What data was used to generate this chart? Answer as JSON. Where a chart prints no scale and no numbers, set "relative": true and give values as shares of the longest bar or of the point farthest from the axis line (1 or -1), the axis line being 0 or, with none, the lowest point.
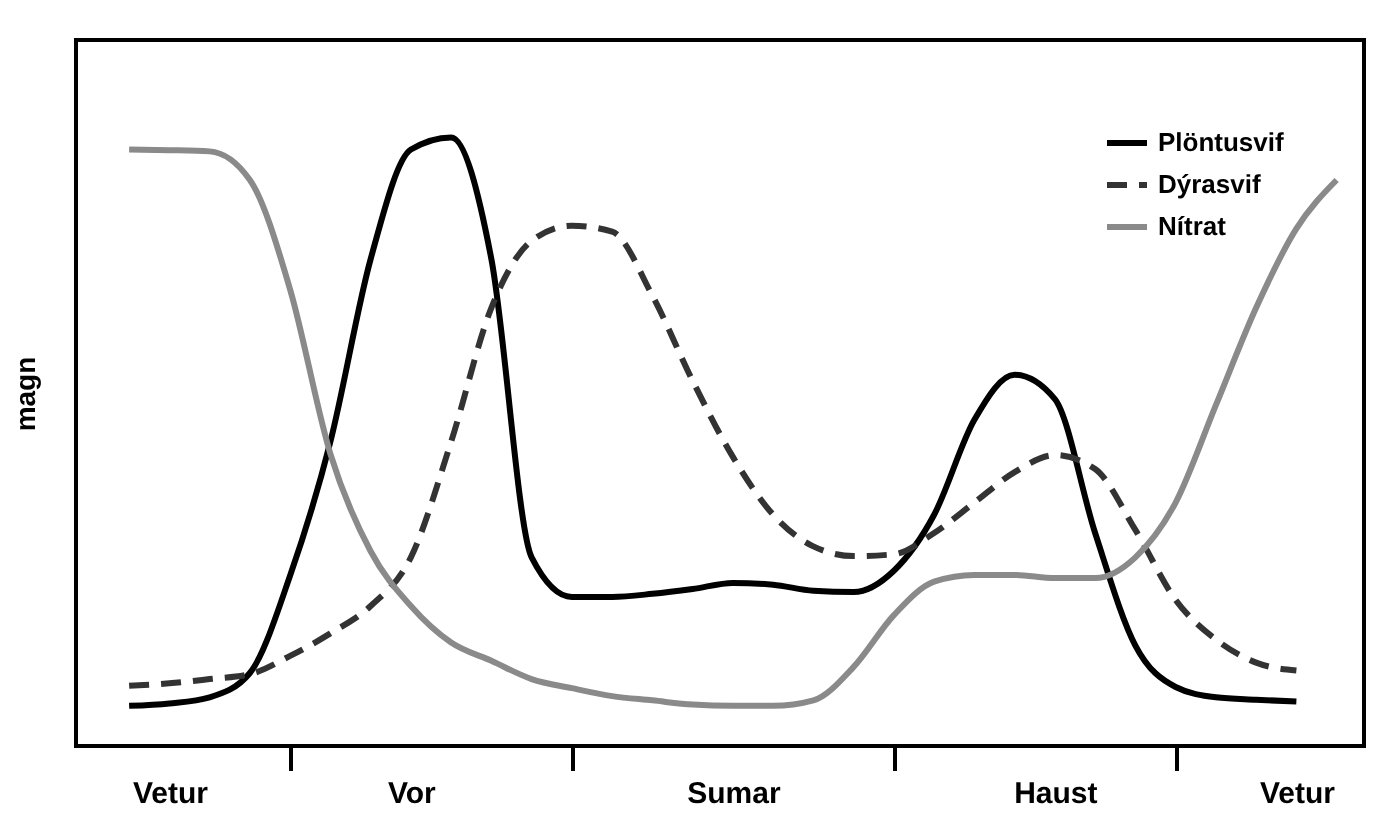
{
  "chart_data": {
    "type": "line",
    "relative": true,
    "ylabel": "magn",
    "legend": "top right",
    "tick_labels": "x",
    "categories": [
      null,
      "Vetur",
      null,
      null,
      null,
      null,
      null,
      "Vor",
      null,
      null,
      null,
      null,
      null,
      null,
      null,
      "Sumar",
      null,
      null,
      null,
      null,
      null,
      null,
      null,
      "Haust",
      null,
      null,
      null,
      null,
      null,
      "Vetur",
      null
    ],
    "series": [
      {
        "name": "Plöntusvif",
        "color": "#000000",
        "line_style": "solid",
        "values": [
          0.066,
          0.07,
          0.08,
          0.12,
          0.28,
          0.5,
          0.8,
          0.98,
          1,
          0.8,
          0.31,
          0.245,
          0.245,
          0.25,
          0.258,
          0.268,
          0.265,
          0.255,
          0.253,
          0.288,
          0.38,
          0.536,
          0.61,
          0.57,
          0.35,
          0.165,
          0.097,
          0.08,
          0.076,
          0.073,
          null
        ]
      },
      {
        "name": "Dýrasvif",
        "color": "#333333",
        "line_style": "dashed",
        "values": [
          0.099,
          0.103,
          0.11,
          0.118,
          0.148,
          0.185,
          0.23,
          0.31,
          0.5,
          0.72,
          0.83,
          0.855,
          0.845,
          0.74,
          0.6,
          0.475,
          0.38,
          0.328,
          0.312,
          0.315,
          0.35,
          0.4,
          0.45,
          0.478,
          0.455,
          0.355,
          0.24,
          0.175,
          0.137,
          0.124,
          null
        ]
      },
      {
        "name": "Nítrat",
        "color": "#8a8a8a",
        "line_style": "solid",
        "values": [
          0.98,
          0.979,
          0.977,
          0.93,
          0.75,
          0.48,
          0.32,
          0.23,
          0.17,
          0.14,
          0.11,
          0.095,
          0.082,
          0.075,
          0.068,
          0.066,
          0.066,
          0.075,
          0.13,
          0.215,
          0.27,
          0.281,
          0.281,
          0.276,
          0.276,
          0.31,
          0.4,
          0.56,
          0.72,
          0.85,
          0.93
        ]
      }
    ]
  }
}
